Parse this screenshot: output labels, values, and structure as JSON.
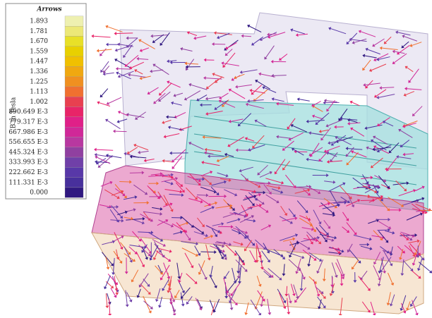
{
  "legend": {
    "title": "Arrows",
    "unit_label": "B in Tesla",
    "labels": [
      "1.893",
      "1.781",
      "1.670",
      "1.559",
      "1.447",
      "1.336",
      "1.225",
      "1.113",
      "1.002",
      "890.649 E-3",
      "779.317 E-3",
      "667.986 E-3",
      "556.655 E-3",
      "445.324 E-3",
      "333.993 E-3",
      "222.662 E-3",
      "111.331 E-3",
      "0.000"
    ],
    "colors": [
      "#eef0b0",
      "#ece878",
      "#e8e028",
      "#e8d000",
      "#f0c000",
      "#f0a810",
      "#f09020",
      "#f07030",
      "#e84050",
      "#e82468",
      "#e02088",
      "#d02898",
      "#b838a0",
      "#9040a0",
      "#7040a8",
      "#5838a8",
      "#48309c",
      "#301880"
    ]
  }
}
